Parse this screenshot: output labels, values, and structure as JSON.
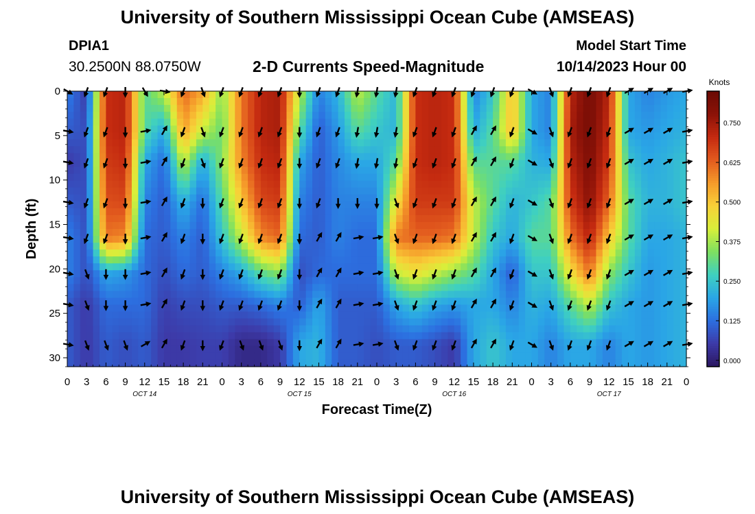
{
  "header": {
    "title": "University of Southern Mississippi Ocean Cube (AMSEAS)",
    "station_id": "DPIA1",
    "station_coords": "30.2500N  88.0750W",
    "chart_title": "2-D Currents Speed-Magnitude",
    "model_start_label": "Model Start Time",
    "model_start_value": "10/14/2023 Hour 00",
    "footer_title": "University of Southern Mississippi Ocean Cube (AMSEAS)"
  },
  "chart_data": {
    "type": "heatmap",
    "title": "2-D Currents Speed-Magnitude",
    "xlabel": "Forecast Time(Z)",
    "ylabel": "Depth (ft)",
    "xlim": [
      0,
      96
    ],
    "ylim": [
      31,
      0
    ],
    "x_ticks": [
      "0",
      "3",
      "6",
      "9",
      "12",
      "15",
      "18",
      "21",
      "0",
      "3",
      "6",
      "9",
      "12",
      "15",
      "18",
      "21",
      "0",
      "3",
      "6",
      "9",
      "12",
      "15",
      "18",
      "21",
      "0",
      "3",
      "6",
      "9",
      "12",
      "15",
      "18",
      "21",
      "0"
    ],
    "y_ticks": [
      "0",
      "5",
      "10",
      "15",
      "20",
      "25",
      "30"
    ],
    "y_tick_values": [
      0,
      5,
      10,
      15,
      20,
      25,
      30
    ],
    "date_labels": [
      {
        "text": "OCT 14",
        "hour": 12
      },
      {
        "text": "OCT 15",
        "hour": 36
      },
      {
        "text": "OCT 16",
        "hour": 60
      },
      {
        "text": "OCT 17",
        "hour": 84
      }
    ],
    "colorbar": {
      "label": "Knots",
      "range": [
        -0.02,
        0.85
      ],
      "ticks": [
        "0.000",
        "0.125",
        "0.250",
        "0.375",
        "0.500",
        "0.625",
        "0.750"
      ],
      "tick_values": [
        0,
        0.125,
        0.25,
        0.375,
        0.5,
        0.625,
        0.75
      ],
      "colors": [
        "#2a1660",
        "#3d3aa8",
        "#2c6fe0",
        "#2aa6e6",
        "#3fd0c0",
        "#7ee060",
        "#d8ef3a",
        "#f8d038",
        "#f59a2a",
        "#e25a1e",
        "#c42a10",
        "#8b1208",
        "#6a0b04"
      ]
    },
    "depths": [
      0,
      4.5,
      8,
      12.5,
      16.5,
      20.5,
      24,
      28.5
    ],
    "hour_columns": [
      0,
      3,
      6,
      9,
      12,
      15,
      18,
      21,
      24,
      27,
      30,
      33,
      36,
      39,
      42,
      45,
      48,
      51,
      54,
      57,
      60,
      63,
      66,
      69,
      72,
      75,
      78,
      81,
      84,
      87,
      90,
      93,
      96
    ],
    "speed": [
      [
        0.15,
        0.1,
        0.05,
        0.1,
        0.15,
        0.15,
        0.1,
        0.1
      ],
      [
        0.05,
        0.08,
        0.08,
        0.08,
        0.08,
        0.08,
        0.05,
        0.05
      ],
      [
        0.7,
        0.7,
        0.68,
        0.65,
        0.6,
        0.2,
        0.12,
        0.1
      ],
      [
        0.72,
        0.72,
        0.7,
        0.66,
        0.58,
        0.18,
        0.12,
        0.08
      ],
      [
        0.3,
        0.3,
        0.2,
        0.15,
        0.12,
        0.12,
        0.12,
        0.1
      ],
      [
        0.4,
        0.2,
        0.12,
        0.1,
        0.1,
        0.08,
        0.06,
        0.05
      ],
      [
        0.62,
        0.55,
        0.4,
        0.22,
        0.15,
        0.12,
        0.08,
        0.05
      ],
      [
        0.55,
        0.4,
        0.2,
        0.12,
        0.1,
        0.1,
        0.08,
        0.06
      ],
      [
        0.35,
        0.32,
        0.35,
        0.3,
        0.25,
        0.15,
        0.1,
        0.06
      ],
      [
        0.6,
        0.6,
        0.58,
        0.5,
        0.4,
        0.2,
        0.1,
        0.02
      ],
      [
        0.72,
        0.72,
        0.7,
        0.66,
        0.58,
        0.3,
        0.12,
        0.02
      ],
      [
        0.74,
        0.74,
        0.72,
        0.68,
        0.62,
        0.35,
        0.15,
        0.05
      ],
      [
        0.4,
        0.3,
        0.2,
        0.15,
        0.12,
        0.08,
        0.1,
        0.2
      ],
      [
        0.15,
        0.1,
        0.1,
        0.1,
        0.1,
        0.12,
        0.2,
        0.22
      ],
      [
        0.22,
        0.18,
        0.16,
        0.15,
        0.15,
        0.12,
        0.1,
        0.1
      ],
      [
        0.4,
        0.3,
        0.2,
        0.15,
        0.12,
        0.12,
        0.1,
        0.1
      ],
      [
        0.3,
        0.25,
        0.2,
        0.15,
        0.12,
        0.12,
        0.1,
        0.08
      ],
      [
        0.22,
        0.22,
        0.3,
        0.45,
        0.6,
        0.4,
        0.2,
        0.1
      ],
      [
        0.7,
        0.7,
        0.7,
        0.68,
        0.62,
        0.45,
        0.25,
        0.1
      ],
      [
        0.72,
        0.72,
        0.72,
        0.68,
        0.62,
        0.4,
        0.2,
        0.08
      ],
      [
        0.7,
        0.7,
        0.7,
        0.68,
        0.6,
        0.35,
        0.18,
        0.05
      ],
      [
        0.15,
        0.2,
        0.3,
        0.4,
        0.4,
        0.3,
        0.2,
        0.2
      ],
      [
        0.25,
        0.3,
        0.3,
        0.3,
        0.25,
        0.2,
        0.2,
        0.25
      ],
      [
        0.52,
        0.52,
        0.3,
        0.22,
        0.2,
        0.1,
        0.15,
        0.2
      ],
      [
        0.2,
        0.2,
        0.22,
        0.25,
        0.3,
        0.25,
        0.22,
        0.2
      ],
      [
        0.15,
        0.15,
        0.2,
        0.3,
        0.3,
        0.25,
        0.2,
        0.15
      ],
      [
        0.72,
        0.74,
        0.72,
        0.68,
        0.6,
        0.45,
        0.3,
        0.2
      ],
      [
        0.82,
        0.82,
        0.8,
        0.78,
        0.72,
        0.6,
        0.4,
        0.2
      ],
      [
        0.72,
        0.7,
        0.68,
        0.62,
        0.5,
        0.35,
        0.25,
        0.15
      ],
      [
        0.2,
        0.2,
        0.25,
        0.3,
        0.3,
        0.25,
        0.2,
        0.2
      ],
      [
        0.15,
        0.18,
        0.2,
        0.22,
        0.2,
        0.18,
        0.18,
        0.18
      ],
      [
        0.18,
        0.2,
        0.22,
        0.22,
        0.2,
        0.2,
        0.2,
        0.2
      ],
      [
        0.2,
        0.22,
        0.25,
        0.25,
        0.22,
        0.22,
        0.22,
        0.22
      ]
    ],
    "arrow_hours": [
      0,
      3,
      6,
      9,
      12,
      15,
      18,
      21,
      24,
      27,
      30,
      33,
      36,
      39,
      42,
      45,
      48,
      51,
      54,
      57,
      60,
      63,
      66,
      69,
      72,
      75,
      78,
      81,
      84,
      87,
      90,
      93,
      96
    ],
    "arrow_directions_deg": [
      [
        120,
        100,
        100,
        100,
        100,
        100,
        100,
        100
      ],
      [
        200,
        200,
        200,
        200,
        200,
        160,
        160,
        160
      ],
      [
        200,
        200,
        200,
        200,
        200,
        180,
        180,
        160
      ],
      [
        180,
        180,
        180,
        180,
        180,
        180,
        180,
        160
      ],
      [
        150,
        80,
        80,
        80,
        80,
        80,
        80,
        60
      ],
      [
        100,
        30,
        30,
        30,
        30,
        30,
        30,
        30
      ],
      [
        200,
        200,
        200,
        200,
        200,
        200,
        200,
        200
      ],
      [
        160,
        160,
        160,
        180,
        180,
        180,
        180,
        180
      ],
      [
        200,
        200,
        200,
        200,
        200,
        200,
        200,
        200
      ],
      [
        200,
        200,
        200,
        200,
        200,
        200,
        200,
        160
      ],
      [
        200,
        200,
        200,
        200,
        200,
        200,
        200,
        160
      ],
      [
        200,
        200,
        200,
        200,
        200,
        200,
        200,
        160
      ],
      [
        180,
        180,
        180,
        180,
        180,
        180,
        180,
        180
      ],
      [
        200,
        200,
        200,
        200,
        30,
        30,
        30,
        30
      ],
      [
        200,
        200,
        200,
        180,
        30,
        30,
        30,
        30
      ],
      [
        190,
        190,
        190,
        180,
        80,
        80,
        80,
        80
      ],
      [
        190,
        190,
        190,
        180,
        80,
        80,
        80,
        80
      ],
      [
        190,
        190,
        190,
        160,
        160,
        160,
        160,
        160
      ],
      [
        200,
        200,
        200,
        200,
        200,
        200,
        200,
        200
      ],
      [
        200,
        200,
        200,
        200,
        200,
        200,
        200,
        200
      ],
      [
        200,
        200,
        200,
        200,
        200,
        200,
        200,
        200
      ],
      [
        200,
        30,
        30,
        30,
        30,
        30,
        30,
        30
      ],
      [
        200,
        30,
        30,
        30,
        30,
        30,
        30,
        30
      ],
      [
        200,
        200,
        200,
        200,
        200,
        200,
        200,
        200
      ],
      [
        120,
        120,
        120,
        120,
        120,
        120,
        120,
        120
      ],
      [
        160,
        160,
        160,
        160,
        160,
        160,
        160,
        160
      ],
      [
        200,
        200,
        200,
        200,
        200,
        200,
        200,
        200
      ],
      [
        200,
        200,
        200,
        200,
        200,
        200,
        200,
        200
      ],
      [
        200,
        200,
        200,
        200,
        200,
        200,
        200,
        200
      ],
      [
        60,
        60,
        60,
        60,
        60,
        60,
        60,
        60
      ],
      [
        60,
        60,
        60,
        60,
        60,
        60,
        60,
        60
      ],
      [
        60,
        60,
        60,
        60,
        60,
        60,
        60,
        60
      ],
      [
        80,
        80,
        80,
        80,
        80,
        80,
        80,
        80
      ]
    ]
  }
}
